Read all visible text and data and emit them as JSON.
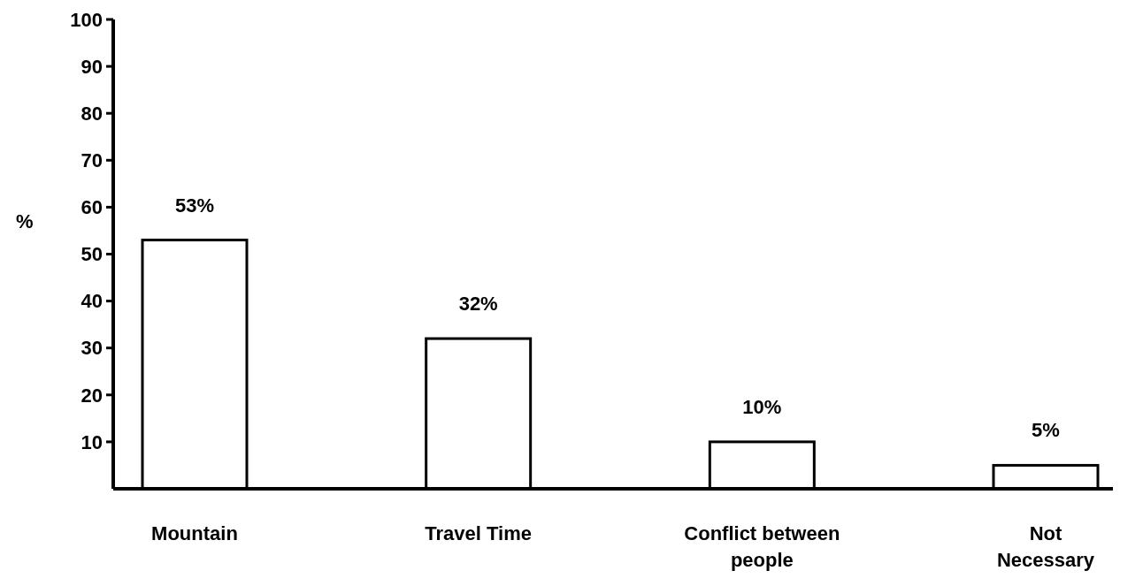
{
  "chart_data": {
    "type": "bar",
    "ylabel": "%",
    "categories": [
      "Mountain",
      "Travel Time",
      "Conflict between people",
      "Not Necessary"
    ],
    "values": [
      53,
      32,
      10,
      5
    ],
    "value_labels": [
      "53%",
      "32%",
      "10%",
      "5%"
    ],
    "color": "#ffffff",
    "ylim": [
      0,
      100
    ],
    "yticks": [
      10,
      20,
      30,
      40,
      50,
      60,
      70,
      80,
      90,
      100
    ],
    "grid": false
  }
}
